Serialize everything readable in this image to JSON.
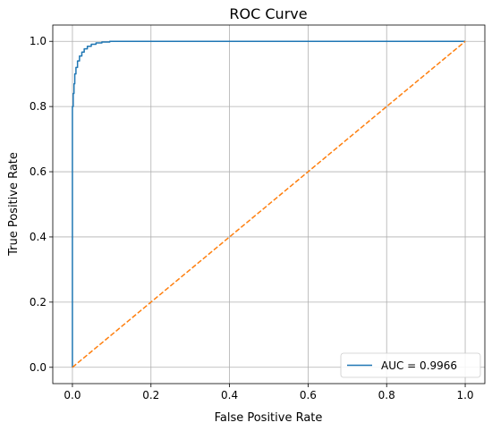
{
  "chart_data": {
    "type": "line",
    "title": "ROC Curve",
    "xlabel": "False Positive Rate",
    "ylabel": "True Positive Rate",
    "xlim": [
      -0.05,
      1.05
    ],
    "ylim": [
      -0.05,
      1.05
    ],
    "grid": true,
    "legend_position": "lower right",
    "x_ticks": [
      "0.0",
      "0.2",
      "0.4",
      "0.6",
      "0.8",
      "1.0"
    ],
    "y_ticks": [
      "0.0",
      "0.2",
      "0.4",
      "0.6",
      "0.8",
      "1.0"
    ],
    "series": [
      {
        "name": "AUC = 0.9966",
        "color": "#1f77b4",
        "style": "solid",
        "x": [
          0.0,
          0.0,
          0.0,
          0.002,
          0.002,
          0.004,
          0.004,
          0.006,
          0.006,
          0.009,
          0.009,
          0.013,
          0.013,
          0.018,
          0.018,
          0.024,
          0.024,
          0.03,
          0.03,
          0.038,
          0.038,
          0.048,
          0.048,
          0.06,
          0.06,
          0.075,
          0.075,
          0.095,
          0.095,
          1.0
        ],
        "y": [
          0.0,
          0.74,
          0.8,
          0.8,
          0.84,
          0.84,
          0.87,
          0.87,
          0.9,
          0.9,
          0.92,
          0.92,
          0.94,
          0.94,
          0.955,
          0.955,
          0.967,
          0.967,
          0.977,
          0.977,
          0.985,
          0.985,
          0.991,
          0.991,
          0.995,
          0.995,
          0.998,
          0.998,
          1.0,
          1.0
        ]
      },
      {
        "name": "",
        "color": "#ff7f0e",
        "style": "dashed",
        "x": [
          0,
          1
        ],
        "y": [
          0,
          1
        ]
      }
    ]
  }
}
